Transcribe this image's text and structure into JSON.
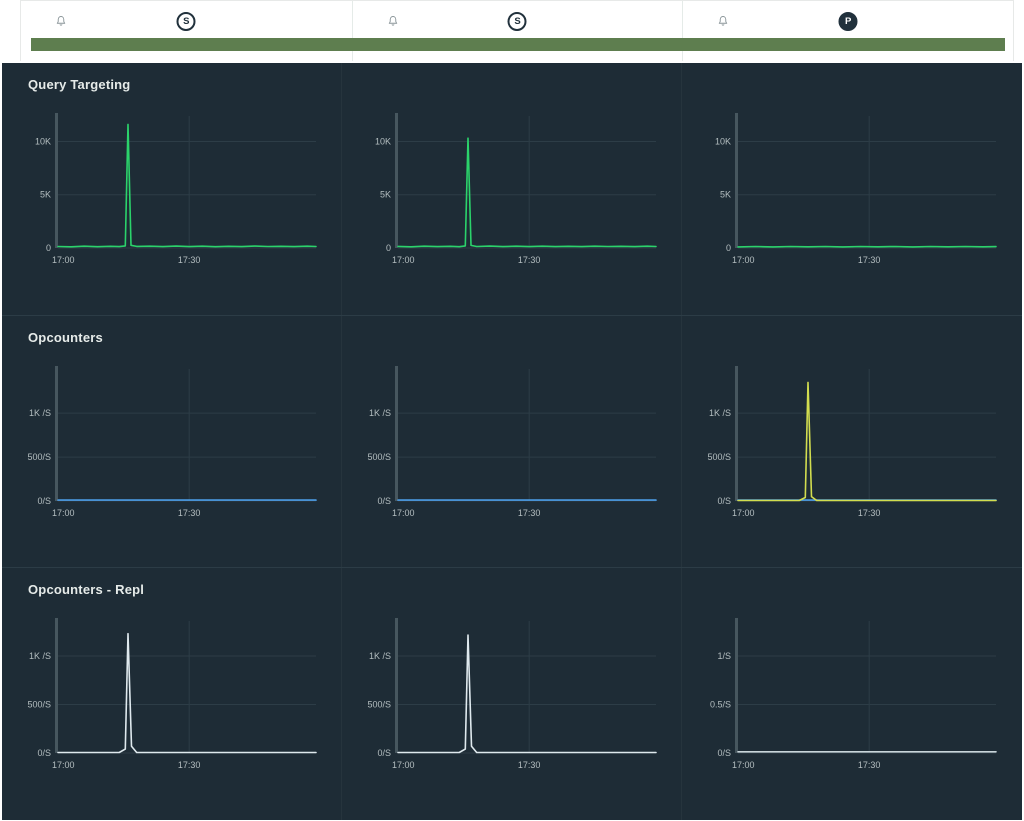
{
  "header": {
    "columns": [
      {
        "badge": "S",
        "role": "secondary"
      },
      {
        "badge": "S",
        "role": "secondary"
      },
      {
        "badge": "P",
        "role": "primary"
      }
    ],
    "health_bar_color": "#5e7e4f"
  },
  "sections": [
    {
      "title": "Query Targeting"
    },
    {
      "title": "Opcounters"
    },
    {
      "title": "Opcounters - Repl"
    }
  ],
  "chart_data": [
    {
      "type": "line",
      "xlim": [
        0,
        59
      ],
      "ylim": [
        0,
        12200
      ],
      "x_ticks": [
        {
          "v": 0,
          "label": "17:00"
        },
        {
          "v": 30,
          "label": "17:30"
        }
      ],
      "y_ticks": [
        {
          "v": 0,
          "label": "0"
        },
        {
          "v": 5000,
          "label": "5K"
        },
        {
          "v": 10000,
          "label": "10K"
        }
      ],
      "series": [
        {
          "color": "#2bd36b",
          "points": [
            [
              0,
              140
            ],
            [
              3,
              110
            ],
            [
              6,
              170
            ],
            [
              9,
              125
            ],
            [
              12,
              160
            ],
            [
              14,
              130
            ],
            [
              15.4,
              200
            ],
            [
              16,
              11600
            ],
            [
              16.7,
              250
            ],
            [
              18,
              150
            ],
            [
              21,
              170
            ],
            [
              24,
              130
            ],
            [
              27,
              175
            ],
            [
              30,
              135
            ],
            [
              33,
              165
            ],
            [
              36,
              125
            ],
            [
              39,
              160
            ],
            [
              42,
              130
            ],
            [
              45,
              175
            ],
            [
              48,
              140
            ],
            [
              51,
              160
            ],
            [
              54,
              130
            ],
            [
              57,
              168
            ],
            [
              59,
              145
            ]
          ]
        }
      ]
    },
    {
      "type": "line",
      "xlim": [
        0,
        59
      ],
      "ylim": [
        0,
        12200
      ],
      "x_ticks": [
        {
          "v": 0,
          "label": "17:00"
        },
        {
          "v": 30,
          "label": "17:30"
        }
      ],
      "y_ticks": [
        {
          "v": 0,
          "label": "0"
        },
        {
          "v": 5000,
          "label": "5K"
        },
        {
          "v": 10000,
          "label": "10K"
        }
      ],
      "series": [
        {
          "color": "#2bd36b",
          "points": [
            [
              0,
              150
            ],
            [
              3,
              115
            ],
            [
              6,
              165
            ],
            [
              9,
              130
            ],
            [
              12,
              155
            ],
            [
              14,
              125
            ],
            [
              15.4,
              200
            ],
            [
              16,
              10300
            ],
            [
              16.7,
              240
            ],
            [
              18,
              145
            ],
            [
              21,
              175
            ],
            [
              24,
              135
            ],
            [
              27,
              170
            ],
            [
              30,
              130
            ],
            [
              33,
              168
            ],
            [
              36,
              128
            ],
            [
              39,
              162
            ],
            [
              42,
              132
            ],
            [
              45,
              170
            ],
            [
              48,
              138
            ],
            [
              51,
              162
            ],
            [
              54,
              128
            ],
            [
              57,
              165
            ],
            [
              59,
              142
            ]
          ]
        }
      ]
    },
    {
      "type": "line",
      "xlim": [
        0,
        59
      ],
      "ylim": [
        0,
        12200
      ],
      "x_ticks": [
        {
          "v": 0,
          "label": "17:00"
        },
        {
          "v": 30,
          "label": "17:30"
        }
      ],
      "y_ticks": [
        {
          "v": 0,
          "label": "0"
        },
        {
          "v": 5000,
          "label": "5K"
        },
        {
          "v": 10000,
          "label": "10K"
        }
      ],
      "series": [
        {
          "color": "#2bd36b",
          "points": [
            [
              0,
              100
            ],
            [
              4,
              140
            ],
            [
              8,
              105
            ],
            [
              12,
              145
            ],
            [
              16,
              110
            ],
            [
              20,
              140
            ],
            [
              24,
              105
            ],
            [
              28,
              145
            ],
            [
              32,
              115
            ],
            [
              36,
              140
            ],
            [
              40,
              105
            ],
            [
              44,
              145
            ],
            [
              48,
              115
            ],
            [
              52,
              138
            ],
            [
              56,
              108
            ],
            [
              59,
              130
            ]
          ]
        }
      ]
    },
    {
      "type": "line",
      "xlim": [
        0,
        59
      ],
      "ylim": [
        0,
        1480
      ],
      "x_ticks": [
        {
          "v": 0,
          "label": "17:00"
        },
        {
          "v": 30,
          "label": "17:30"
        }
      ],
      "y_ticks": [
        {
          "v": 0,
          "label": "0/S"
        },
        {
          "v": 500,
          "label": "500/S"
        },
        {
          "v": 1000,
          "label": "1K /S"
        }
      ],
      "series": [
        {
          "color": "#4d9fe8",
          "points": [
            [
              0,
              10
            ],
            [
              59,
              10
            ]
          ]
        }
      ]
    },
    {
      "type": "line",
      "xlim": [
        0,
        59
      ],
      "ylim": [
        0,
        1480
      ],
      "x_ticks": [
        {
          "v": 0,
          "label": "17:00"
        },
        {
          "v": 30,
          "label": "17:30"
        }
      ],
      "y_ticks": [
        {
          "v": 0,
          "label": "0/S"
        },
        {
          "v": 500,
          "label": "500/S"
        },
        {
          "v": 1000,
          "label": "1K /S"
        }
      ],
      "series": [
        {
          "color": "#4d9fe8",
          "points": [
            [
              0,
              10
            ],
            [
              59,
              10
            ]
          ]
        }
      ]
    },
    {
      "type": "line",
      "xlim": [
        0,
        59
      ],
      "ylim": [
        0,
        1480
      ],
      "x_ticks": [
        {
          "v": 0,
          "label": "17:00"
        },
        {
          "v": 30,
          "label": "17:30"
        }
      ],
      "y_ticks": [
        {
          "v": 0,
          "label": "0/S"
        },
        {
          "v": 500,
          "label": "500/S"
        },
        {
          "v": 1000,
          "label": "1K /S"
        }
      ],
      "series": [
        {
          "color": "#4d9fe8",
          "points": [
            [
              0,
              10
            ],
            [
              59,
              10
            ]
          ]
        },
        {
          "color": "#d2dd4f",
          "points": [
            [
              0,
              6
            ],
            [
              14,
              6
            ],
            [
              15.4,
              40
            ],
            [
              16,
              1350
            ],
            [
              16.8,
              50
            ],
            [
              18,
              6
            ],
            [
              59,
              6
            ]
          ]
        }
      ]
    },
    {
      "type": "line",
      "xlim": [
        0,
        59
      ],
      "ylim": [
        0,
        1340
      ],
      "x_ticks": [
        {
          "v": 0,
          "label": "17:00"
        },
        {
          "v": 30,
          "label": "17:30"
        }
      ],
      "y_ticks": [
        {
          "v": 0,
          "label": "0/S"
        },
        {
          "v": 500,
          "label": "500/S"
        },
        {
          "v": 1000,
          "label": "1K /S"
        }
      ],
      "series": [
        {
          "color": "#dfe9ee",
          "points": [
            [
              0,
              5
            ],
            [
              14,
              5
            ],
            [
              15.4,
              40
            ],
            [
              16,
              1230
            ],
            [
              16.8,
              70
            ],
            [
              18,
              5
            ],
            [
              59,
              5
            ]
          ]
        }
      ]
    },
    {
      "type": "line",
      "xlim": [
        0,
        59
      ],
      "ylim": [
        0,
        1340
      ],
      "x_ticks": [
        {
          "v": 0,
          "label": "17:00"
        },
        {
          "v": 30,
          "label": "17:30"
        }
      ],
      "y_ticks": [
        {
          "v": 0,
          "label": "0/S"
        },
        {
          "v": 500,
          "label": "500/S"
        },
        {
          "v": 1000,
          "label": "1K /S"
        }
      ],
      "series": [
        {
          "color": "#dfe9ee",
          "points": [
            [
              0,
              5
            ],
            [
              14,
              5
            ],
            [
              15.4,
              40
            ],
            [
              16,
              1215
            ],
            [
              16.8,
              70
            ],
            [
              18,
              5
            ],
            [
              59,
              5
            ]
          ]
        }
      ]
    },
    {
      "type": "line",
      "xlim": [
        0,
        59
      ],
      "ylim": [
        0,
        1.34
      ],
      "x_ticks": [
        {
          "v": 0,
          "label": "17:00"
        },
        {
          "v": 30,
          "label": "17:30"
        }
      ],
      "y_ticks": [
        {
          "v": 0,
          "label": "0/S"
        },
        {
          "v": 0.5,
          "label": "0.5/S"
        },
        {
          "v": 1,
          "label": "1/S"
        }
      ],
      "series": [
        {
          "color": "#c9d5da",
          "points": [
            [
              0,
              0.012
            ],
            [
              59,
              0.012
            ]
          ]
        }
      ]
    }
  ]
}
